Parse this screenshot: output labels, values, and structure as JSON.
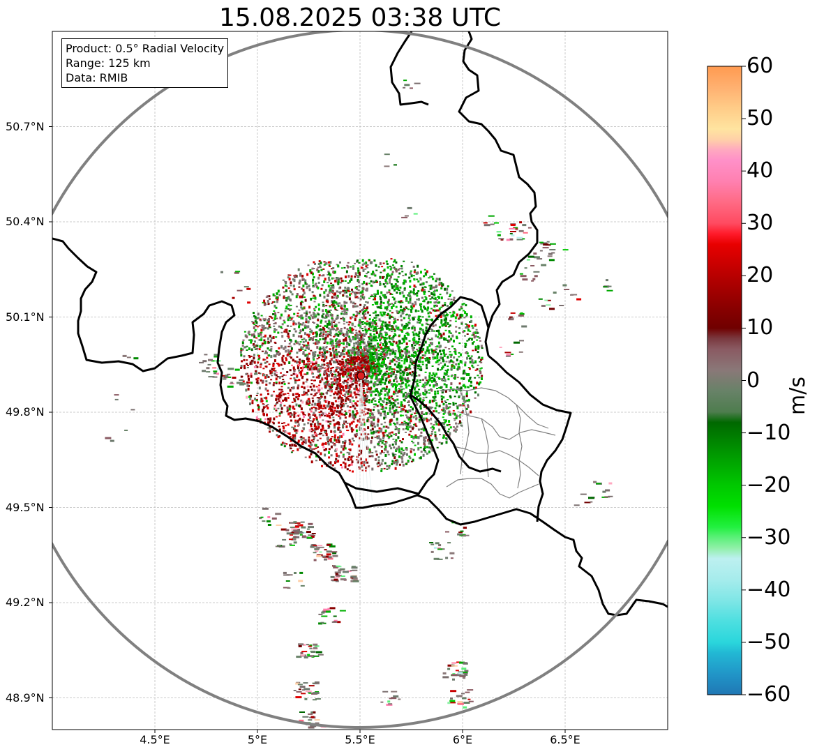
{
  "title": "15.08.2025 03:38 UTC",
  "info": {
    "product": "Product: 0.5° Radial Velocity",
    "range": "Range: 125 km",
    "data": "Data: RMIB"
  },
  "map": {
    "lon_range": [
      4.0,
      7.0
    ],
    "lat_range": [
      48.8,
      51.0
    ],
    "radar_site": {
      "lon": 5.505,
      "lat": 49.915,
      "color": "#dd2222"
    },
    "range_ring_color": "#808080",
    "border_color": "#000000",
    "district_color": "#808080",
    "grid": true
  },
  "axes": {
    "yticks": [
      "50.7°N",
      "50.4°N",
      "50.1°N",
      "49.8°N",
      "49.5°N",
      "49.2°N",
      "48.9°N"
    ],
    "ytick_values": [
      50.7,
      50.4,
      50.1,
      49.8,
      49.5,
      49.2,
      48.9
    ],
    "xticks": [
      "4.5°E",
      "5°E",
      "5.5°E",
      "6°E",
      "6.5°E"
    ],
    "xtick_values": [
      4.5,
      5.0,
      5.5,
      6.0,
      6.5
    ]
  },
  "colorbar": {
    "label": "m/s",
    "min": -60,
    "max": 60,
    "ticks": [
      "60",
      "50",
      "40",
      "30",
      "20",
      "10",
      "0",
      "−10",
      "−20",
      "−30",
      "−40",
      "−50",
      "−60"
    ],
    "tick_values": [
      60,
      50,
      40,
      30,
      20,
      10,
      0,
      -10,
      -20,
      -30,
      -40,
      -50,
      -60
    ],
    "stops": [
      {
        "v": -60,
        "c": "#1f77b4"
      },
      {
        "v": -56,
        "c": "#2196c8"
      },
      {
        "v": -52,
        "c": "#22b8d4"
      },
      {
        "v": -50,
        "c": "#2ad6dc"
      },
      {
        "v": -46,
        "c": "#4ddfe0"
      },
      {
        "v": -42,
        "c": "#7fe6e6"
      },
      {
        "v": -38,
        "c": "#a6ecec"
      },
      {
        "v": -34,
        "c": "#bdf0f0"
      },
      {
        "v": -32,
        "c": "#90f0a8"
      },
      {
        "v": -30,
        "c": "#5cf07a"
      },
      {
        "v": -28,
        "c": "#22f040"
      },
      {
        "v": -24,
        "c": "#00e000"
      },
      {
        "v": -20,
        "c": "#00c800"
      },
      {
        "v": -16,
        "c": "#00a800"
      },
      {
        "v": -12,
        "c": "#008800"
      },
      {
        "v": -8,
        "c": "#006800"
      },
      {
        "v": -6,
        "c": "#4e7d4e"
      },
      {
        "v": -2,
        "c": "#688268"
      },
      {
        "v": 2,
        "c": "#8a7878"
      },
      {
        "v": 6,
        "c": "#8a5a62"
      },
      {
        "v": 8,
        "c": "#7a3a40"
      },
      {
        "v": 10,
        "c": "#700000"
      },
      {
        "v": 14,
        "c": "#8a0000"
      },
      {
        "v": 18,
        "c": "#a80000"
      },
      {
        "v": 22,
        "c": "#c80000"
      },
      {
        "v": 26,
        "c": "#e80000"
      },
      {
        "v": 28,
        "c": "#ff1a2a"
      },
      {
        "v": 30,
        "c": "#ff4a60"
      },
      {
        "v": 34,
        "c": "#ff6a84"
      },
      {
        "v": 38,
        "c": "#ff80b0"
      },
      {
        "v": 42,
        "c": "#ff90c8"
      },
      {
        "v": 44,
        "c": "#ffa8c0"
      },
      {
        "v": 46,
        "c": "#ffd0a8"
      },
      {
        "v": 48,
        "c": "#ffe4a0"
      },
      {
        "v": 52,
        "c": "#ffcc88"
      },
      {
        "v": 56,
        "c": "#ffb070"
      },
      {
        "v": 60,
        "c": "#ff9a50"
      }
    ]
  }
}
